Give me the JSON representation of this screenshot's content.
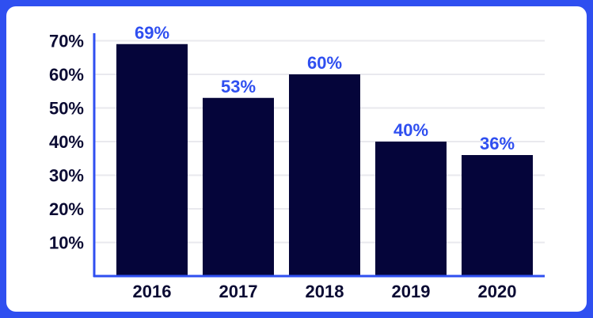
{
  "colors": {
    "frame": "#2f4ff0",
    "background": "#ffffff",
    "bar": "#05053a",
    "value_label": "#2f4ff0",
    "axis": "#2f4ff0",
    "gridline": "#e9e9ee",
    "tick_label": "#0b0b33"
  },
  "chart_data": {
    "type": "bar",
    "title": "",
    "xlabel": "",
    "ylabel": "",
    "categories": [
      "2016",
      "2017",
      "2018",
      "2019",
      "2020"
    ],
    "values": [
      69,
      53,
      60,
      40,
      36
    ],
    "value_labels": [
      "69%",
      "53%",
      "60%",
      "40%",
      "36%"
    ],
    "y_ticks": [
      10,
      20,
      30,
      40,
      50,
      60,
      70
    ],
    "y_tick_labels": [
      "10%",
      "20%",
      "30%",
      "40%",
      "50%",
      "60%",
      "70%"
    ],
    "ylim": [
      0,
      74
    ],
    "grid": true,
    "legend": "none"
  }
}
